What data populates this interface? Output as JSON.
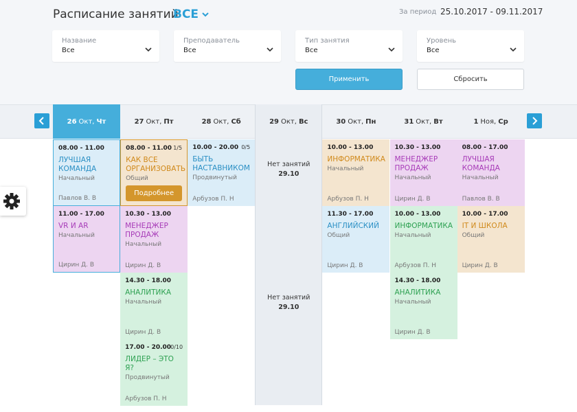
{
  "header": {
    "title": "Расписание занятий",
    "filter_value": "ВСЕ",
    "period_label": "За период",
    "period": "25.10.2017 - 09.11.2017"
  },
  "filters": [
    {
      "label": "Название",
      "value": "Все"
    },
    {
      "label": "Преподаватель",
      "value": "Все"
    },
    {
      "label": "Тип занятия",
      "value": "Все"
    },
    {
      "label": "Уровень",
      "value": "Все"
    }
  ],
  "buttons": {
    "apply": "Применить",
    "reset": "Сбросить"
  },
  "days": [
    {
      "date": "26",
      "month": "Окт,",
      "weekday": "Чт",
      "selected": true,
      "events": [
        {
          "time": "08.00 - 11.00",
          "title": "ЛУЧШАЯ КОМАНДА",
          "level": "Начальный",
          "teacher": "Павлов В. В",
          "theme": "blue"
        },
        {
          "time": "11.00 - 17.00",
          "title": "VR И AR",
          "level": "Начальный",
          "teacher": "Цирин Д. В",
          "theme": "purple"
        }
      ]
    },
    {
      "date": "27",
      "month": "Окт,",
      "weekday": "Пт",
      "events": [
        {
          "time": "08.00 - 11.00",
          "title": "КАК ВСЕ ОРГАНИЗОВАТЬ",
          "level": "Общий",
          "count": "1/5",
          "button": "Подробнее",
          "theme": "orange"
        },
        {
          "time": "10.30 - 13.00",
          "title": "МЕНЕДЖЕР ПРОДАЖ",
          "level": "Начальный",
          "teacher": "Цирин Д. В",
          "theme": "purple"
        },
        {
          "time": "14.30 - 18.00",
          "title": "АНАЛИТИКА",
          "level": "Начальный",
          "teacher": "Цирин Д. В",
          "theme": "green"
        },
        {
          "time": "17.00 - 20.00",
          "title": "ЛИДЕР – ЭТО Я?",
          "level": "Продвинутый",
          "teacher": "Арбузов П. Н",
          "count": "0/10",
          "theme": "green"
        }
      ]
    },
    {
      "date": "28",
      "month": "Окт,",
      "weekday": "Сб",
      "events": [
        {
          "time": "10.00 - 20.00",
          "title": "БЫТЬ НАСТАВНИКОМ",
          "level": "Продвинутый",
          "teacher": "Арбузов П. Н",
          "count": "0/5",
          "theme": "blue"
        }
      ]
    },
    {
      "date": "29",
      "month": "Окт,",
      "weekday": "Вс",
      "no_classes": [
        {
          "text": "Нет занятий",
          "date": "29.10"
        },
        {
          "text": "Нет занятий",
          "date": "29.10"
        }
      ]
    },
    {
      "date": "30",
      "month": "Окт,",
      "weekday": "Пн",
      "events": [
        {
          "time": "10.00 - 13.00",
          "title": "ИНФОРМАТИКА",
          "level": "Начальный",
          "teacher": "Арбузов П. Н",
          "theme": "orange"
        },
        {
          "time": "11.30 - 17.00",
          "title": "АНГЛИЙСКИЙ",
          "level": "Общий",
          "teacher": "Цирин Д. В",
          "theme": "blue"
        }
      ]
    },
    {
      "date": "31",
      "month": "Окт,",
      "weekday": "Вт",
      "events": [
        {
          "time": "10.30 - 13.00",
          "title": "МЕНЕДЖЕР ПРОДАЖ",
          "level": "Начальный",
          "teacher": "Цирин Д. В",
          "theme": "purple"
        },
        {
          "time": "10.00 - 13.00",
          "title": "ИНФОРМАТИКА",
          "level": "Начальный",
          "teacher": "Арбузов П. Н",
          "theme": "green"
        },
        {
          "time": "14.30 - 18.00",
          "title": "АНАЛИТИКА",
          "level": "Начальный",
          "teacher": "Цирин Д. В",
          "theme": "green"
        }
      ]
    },
    {
      "date": "1",
      "month": "Ноя,",
      "weekday": "Ср",
      "events": [
        {
          "time": "08.00 - 17.00",
          "title": "ЛУЧШАЯ КОМАНДА",
          "level": "Начальный",
          "teacher": "Павлов В. В",
          "theme": "purple"
        },
        {
          "time": "10.00 - 17.00",
          "title": "IT И ШКОЛА",
          "level": "Общий",
          "teacher": "Цирин Д. В",
          "theme": "orange"
        }
      ]
    }
  ]
}
